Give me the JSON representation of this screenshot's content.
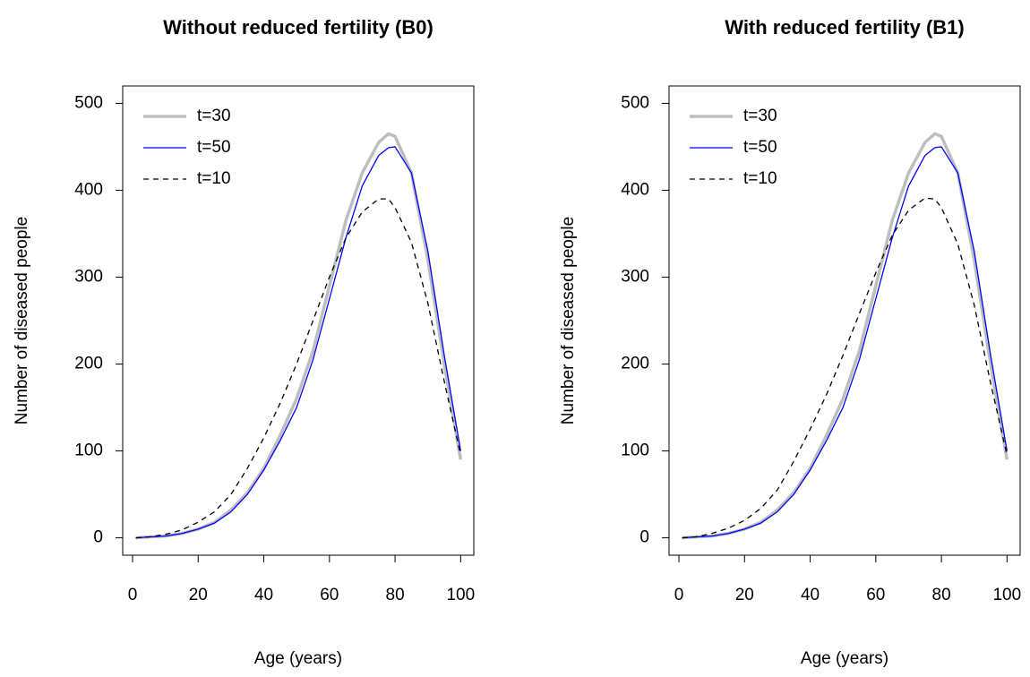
{
  "chart_data": [
    {
      "type": "line",
      "title": "Without reduced fertility (B0)",
      "xlabel": "Age (years)",
      "ylabel": "Number of diseased people",
      "xlim": [
        -3,
        104
      ],
      "ylim": [
        -20,
        520
      ],
      "xticks": [
        0,
        20,
        40,
        60,
        80,
        100
      ],
      "yticks": [
        0,
        100,
        200,
        300,
        400,
        500
      ],
      "legend": "top-left",
      "x": [
        1,
        5,
        10,
        15,
        20,
        25,
        30,
        35,
        40,
        45,
        50,
        55,
        60,
        65,
        70,
        75,
        78,
        80,
        85,
        90,
        95,
        100
      ],
      "series": [
        {
          "name": "t=30",
          "color": "#bebebe",
          "linestyle": "solid",
          "linewidth": 3.5,
          "values": [
            0,
            1,
            2,
            5,
            10,
            18,
            32,
            52,
            80,
            118,
            160,
            215,
            290,
            365,
            420,
            455,
            465,
            462,
            420,
            320,
            200,
            90
          ]
        },
        {
          "name": "t=50",
          "color": "#0000ff",
          "linestyle": "solid",
          "linewidth": 1.3,
          "values": [
            0,
            1,
            2,
            5,
            10,
            17,
            30,
            50,
            78,
            112,
            150,
            205,
            275,
            345,
            405,
            440,
            449,
            450,
            420,
            330,
            210,
            100
          ]
        },
        {
          "name": "t=10",
          "color": "#000000",
          "linestyle": "dashed",
          "linewidth": 1.3,
          "values": [
            0,
            1,
            4,
            9,
            18,
            30,
            50,
            80,
            115,
            155,
            200,
            250,
            300,
            345,
            375,
            390,
            390,
            380,
            340,
            270,
            180,
            95
          ]
        }
      ]
    },
    {
      "type": "line",
      "title": "With reduced fertility (B1)",
      "xlabel": "Age (years)",
      "ylabel": "Number of diseased people",
      "xlim": [
        -3,
        104
      ],
      "ylim": [
        -20,
        520
      ],
      "xticks": [
        0,
        20,
        40,
        60,
        80,
        100
      ],
      "yticks": [
        0,
        100,
        200,
        300,
        400,
        500
      ],
      "legend": "top-left",
      "x": [
        1,
        5,
        10,
        15,
        20,
        25,
        30,
        35,
        40,
        45,
        50,
        55,
        60,
        65,
        70,
        75,
        78,
        80,
        85,
        90,
        95,
        100
      ],
      "series": [
        {
          "name": "t=30",
          "color": "#bebebe",
          "linestyle": "solid",
          "linewidth": 3.5,
          "values": [
            0,
            1,
            2,
            5,
            10,
            18,
            32,
            52,
            80,
            118,
            160,
            215,
            290,
            365,
            420,
            455,
            465,
            462,
            420,
            320,
            200,
            90
          ]
        },
        {
          "name": "t=50",
          "color": "#0000ff",
          "linestyle": "solid",
          "linewidth": 1.3,
          "values": [
            0,
            1,
            2,
            5,
            10,
            17,
            30,
            50,
            78,
            112,
            150,
            205,
            275,
            345,
            405,
            440,
            449,
            450,
            420,
            330,
            210,
            100
          ]
        },
        {
          "name": "t=10",
          "color": "#000000",
          "linestyle": "dashed",
          "linewidth": 1.3,
          "values": [
            0,
            1,
            5,
            11,
            20,
            34,
            55,
            88,
            125,
            165,
            210,
            258,
            305,
            348,
            377,
            391,
            390,
            380,
            338,
            268,
            178,
            95
          ]
        }
      ]
    }
  ]
}
